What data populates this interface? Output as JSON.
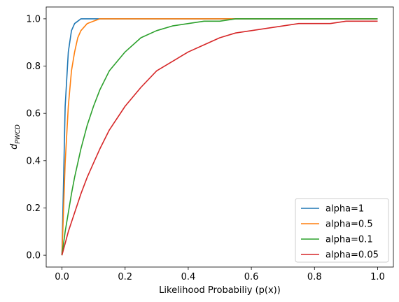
{
  "chart_data": {
    "type": "line",
    "xlabel": "Likelihood Probabiliy (p(x))",
    "ylabel": "d",
    "ylabel_subscript": "PWCD",
    "xlim": [
      -0.05,
      1.05
    ],
    "ylim": [
      -0.05,
      1.05
    ],
    "xticks": [
      "0.0",
      "0.2",
      "0.4",
      "0.6",
      "0.8",
      "1.0"
    ],
    "yticks": [
      "0.0",
      "0.2",
      "0.4",
      "0.6",
      "0.8",
      "1.0"
    ],
    "grid": false,
    "legend_position": "lower-right",
    "x": [
      0,
      0.01,
      0.02,
      0.03,
      0.04,
      0.05,
      0.06,
      0.08,
      0.1,
      0.12,
      0.15,
      0.2,
      0.25,
      0.3,
      0.35,
      0.4,
      0.45,
      0.5,
      0.55,
      0.6,
      0.65,
      0.7,
      0.75,
      0.8,
      0.85,
      0.9,
      0.95,
      1.0
    ],
    "series": [
      {
        "name": "alpha=1",
        "color": "#1f77b4",
        "values": [
          0,
          0.63,
          0.86,
          0.95,
          0.98,
          0.99,
          1.0,
          1.0,
          1.0,
          1.0,
          1.0,
          1.0,
          1.0,
          1.0,
          1.0,
          1.0,
          1.0,
          1.0,
          1.0,
          1.0,
          1.0,
          1.0,
          1.0,
          1.0,
          1.0,
          1.0,
          1.0,
          1.0
        ]
      },
      {
        "name": "alpha=0.5",
        "color": "#ff7f0e",
        "values": [
          0,
          0.39,
          0.63,
          0.78,
          0.86,
          0.92,
          0.95,
          0.98,
          0.99,
          1.0,
          1.0,
          1.0,
          1.0,
          1.0,
          1.0,
          1.0,
          1.0,
          1.0,
          1.0,
          1.0,
          1.0,
          1.0,
          1.0,
          1.0,
          1.0,
          1.0,
          1.0,
          1.0
        ]
      },
      {
        "name": "alpha=0.1",
        "color": "#2ca02c",
        "values": [
          0,
          0.1,
          0.18,
          0.26,
          0.33,
          0.39,
          0.45,
          0.55,
          0.63,
          0.7,
          0.78,
          0.86,
          0.92,
          0.95,
          0.97,
          0.98,
          0.99,
          0.99,
          1.0,
          1.0,
          1.0,
          1.0,
          1.0,
          1.0,
          1.0,
          1.0,
          1.0,
          1.0
        ]
      },
      {
        "name": "alpha=0.05",
        "color": "#d62728",
        "values": [
          0,
          0.05,
          0.1,
          0.14,
          0.18,
          0.22,
          0.26,
          0.33,
          0.39,
          0.45,
          0.53,
          0.63,
          0.71,
          0.78,
          0.82,
          0.86,
          0.89,
          0.92,
          0.94,
          0.95,
          0.96,
          0.97,
          0.98,
          0.98,
          0.98,
          0.99,
          0.99,
          0.99
        ]
      }
    ]
  }
}
